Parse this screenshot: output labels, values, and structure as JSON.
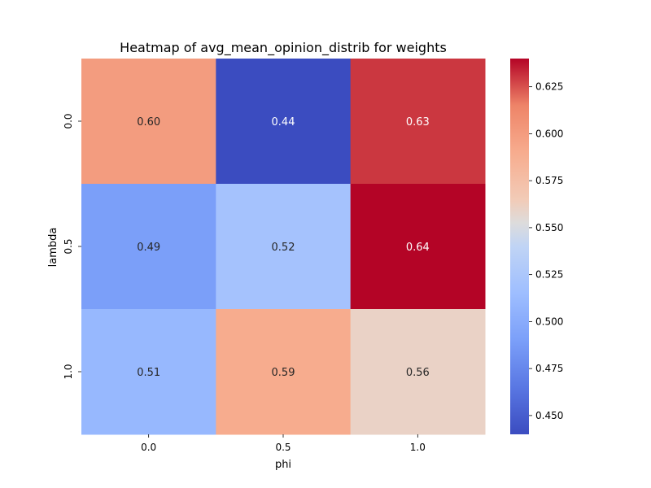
{
  "chart_data": {
    "type": "heatmap",
    "title": "Heatmap of avg_mean_opinion_distrib for weights",
    "xlabel": "phi",
    "ylabel": "lambda",
    "x_categories": [
      "0.0",
      "0.5",
      "1.0"
    ],
    "y_categories": [
      "0.0",
      "0.5",
      "1.0"
    ],
    "values": [
      [
        0.6,
        0.44,
        0.63
      ],
      [
        0.49,
        0.52,
        0.64
      ],
      [
        0.51,
        0.59,
        0.56
      ]
    ],
    "value_labels": [
      [
        "0.60",
        "0.44",
        "0.63"
      ],
      [
        "0.49",
        "0.52",
        "0.64"
      ],
      [
        "0.51",
        "0.59",
        "0.56"
      ]
    ],
    "colormap": "coolwarm",
    "color_range": [
      0.44,
      0.64
    ],
    "colorbar_ticks": [
      0.45,
      0.475,
      0.5,
      0.525,
      0.55,
      0.575,
      0.6,
      0.625
    ],
    "colorbar_tick_labels": [
      "0.450",
      "0.475",
      "0.500",
      "0.525",
      "0.550",
      "0.575",
      "0.600",
      "0.625"
    ],
    "grid": false
  }
}
